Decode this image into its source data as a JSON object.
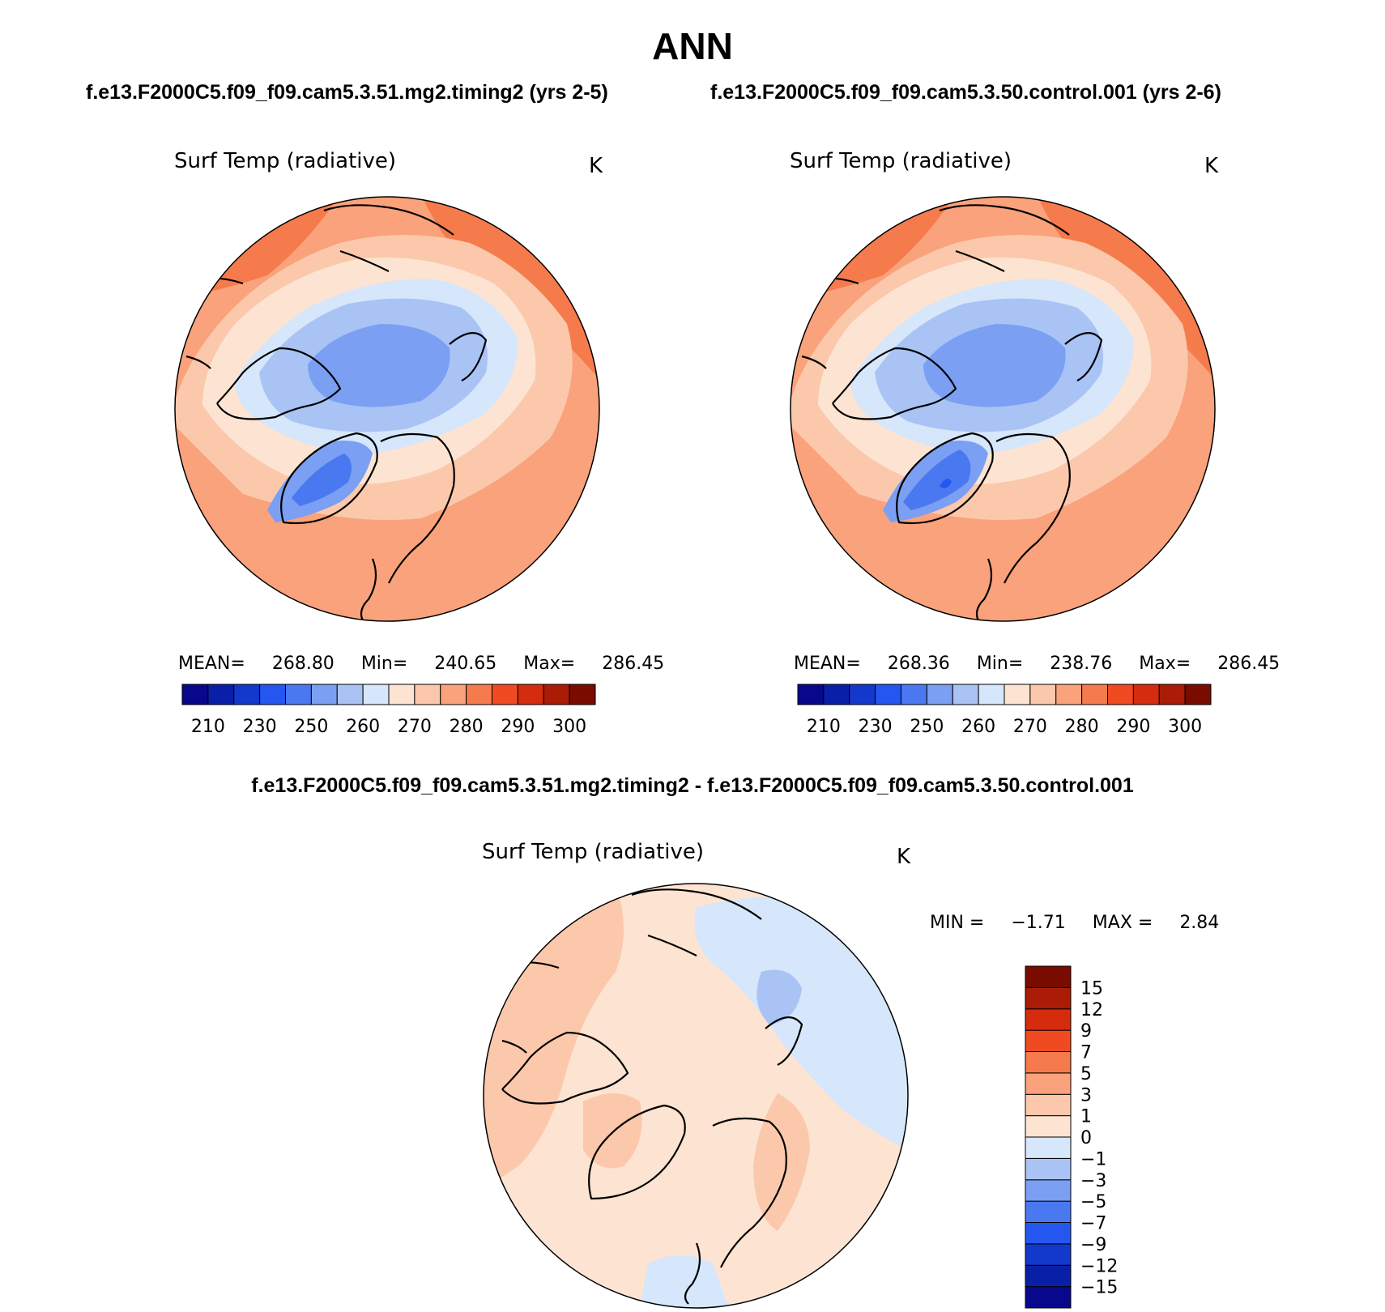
{
  "figure": {
    "title": "ANN",
    "subtitle_left": "f.e13.F2000C5.f09_f09.cam5.3.51.mg2.timing2 (yrs 2-5)",
    "subtitle_right": "f.e13.F2000C5.f09_f09.cam5.3.50.control.001 (yrs 2-6)",
    "diff_title": "f.e13.F2000C5.f09_f09.cam5.3.51.mg2.timing2 - f.e13.F2000C5.f09_f09.cam5.3.50.control.001"
  },
  "panels": [
    {
      "variable": "Surf Temp (radiative)",
      "units": "K",
      "stats": {
        "mean_label": "MEAN=",
        "mean": "268.80",
        "min_label": "Min=",
        "min": "240.65",
        "max_label": "Max=",
        "max": "286.45"
      }
    },
    {
      "variable": "Surf Temp (radiative)",
      "units": "K",
      "stats": {
        "mean_label": "MEAN=",
        "mean": "268.36",
        "min_label": "Min=",
        "min": "238.76",
        "max_label": "Max=",
        "max": "286.45"
      }
    },
    {
      "variable": "Surf Temp (radiative)",
      "units": "K",
      "stats": {
        "min_label": "MIN =",
        "min": "−1.71",
        "max_label": "MAX =",
        "max": "2.84"
      }
    }
  ],
  "colorbar_abs": {
    "colors": [
      "#08088c",
      "#0a1fa8",
      "#1338cc",
      "#2357f0",
      "#4a78f0",
      "#7b9ff2",
      "#a9c3f5",
      "#d6e6fb",
      "#fde4d2",
      "#fcc8ab",
      "#f9a27b",
      "#f57b4c",
      "#ef4a22",
      "#d52c0d",
      "#aa1c05",
      "#7a0b00"
    ],
    "labels": [
      "210",
      "230",
      "250",
      "260",
      "270",
      "280",
      "290",
      "300"
    ]
  },
  "colorbar_diff": {
    "colors": [
      "#08088c",
      "#0a1fa8",
      "#1338cc",
      "#2357f0",
      "#4a78f0",
      "#7b9ff2",
      "#a9c3f5",
      "#d6e6fb",
      "#fde4d2",
      "#fcc8ab",
      "#f9a27b",
      "#f57b4c",
      "#ef4a22",
      "#d52c0d",
      "#aa1c05",
      "#7a0b00"
    ],
    "labels": [
      "−15",
      "−12",
      "−9",
      "−7",
      "−5",
      "−3",
      "−1",
      "0",
      "1",
      "3",
      "5",
      "7",
      "9",
      "12",
      "15"
    ]
  }
}
